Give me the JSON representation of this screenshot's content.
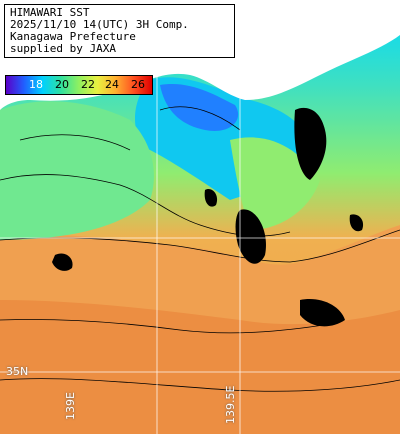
{
  "title_lines": [
    "HIMAWARI SST",
    "2025/11/10 14(UTC) 3H Comp.",
    "Kanagawa Prefecture",
    "supplied by JAXA"
  ],
  "legend": {
    "labels": [
      "18",
      "20",
      "22",
      "24",
      "26"
    ],
    "colors": [
      "#5a00c8",
      "#2060ff",
      "#00d0ff",
      "#30e0a0",
      "#90f060",
      "#e8f040",
      "#ffb030",
      "#ff5020",
      "#e00000"
    ]
  },
  "grid_labels": {
    "lat": [
      "35N"
    ],
    "lon": [
      "139E",
      "139.5E"
    ]
  },
  "colors": {
    "land": "#ffffff",
    "cloud": "#000000",
    "grid": "#ffffff"
  }
}
